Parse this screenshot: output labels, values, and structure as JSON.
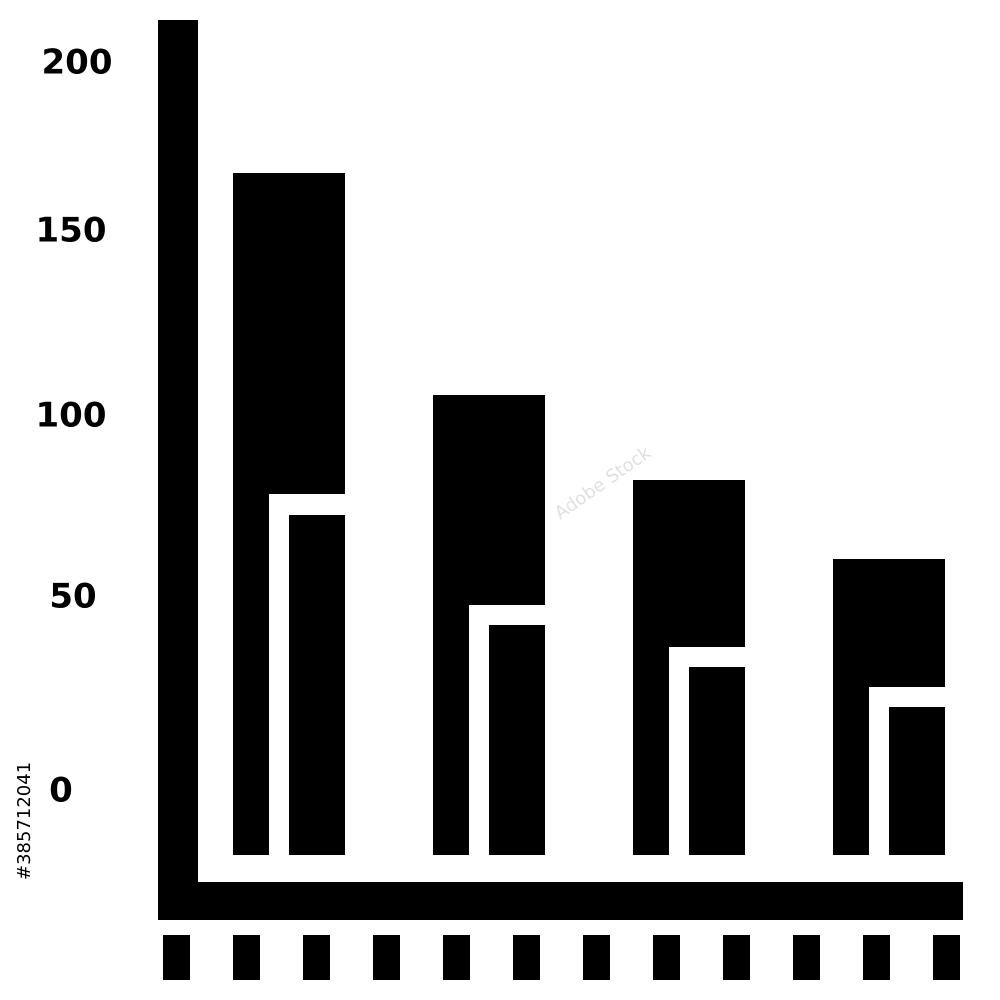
{
  "icon": {
    "axis_labels": [
      "200",
      "150",
      "100",
      "50",
      "0"
    ]
  },
  "watermark": {
    "text": "Adobe Stock",
    "id": "#385712041"
  }
}
